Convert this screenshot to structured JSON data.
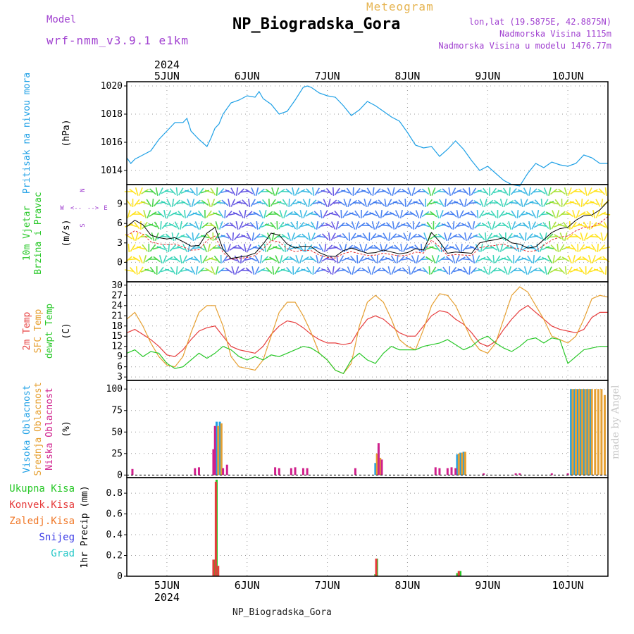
{
  "header": {
    "model_label": "Model",
    "model_name": "wrf-nmm_v3.9.1 e1km",
    "product": "Meteogram",
    "station": "NP_Biogradska_Gora",
    "coords": "lon,lat (19.5875E, 42.8875N)",
    "elevation": "Nadmorska Visina 1115m",
    "model_elevation": "Nadmorska Visina u modelu 1476.77m",
    "footer": "NP_Biogradska_Gora",
    "watermark": "made by Angel"
  },
  "colors": {
    "pressure": "#1ea0e6",
    "wind_black": "#000000",
    "wind_red": "#e63232",
    "t2m": "#e63c3c",
    "sfc": "#e6a032",
    "dew": "#28c828",
    "cloud_high": "#1ea0e6",
    "cloud_mid": "#e6a032",
    "cloud_low": "#d0208c",
    "precip_total": "#28c828",
    "precip_conv": "#e63c3c",
    "precip_frz": "#f07828",
    "precip_snow": "#3c3ce6",
    "precip_grad": "#28c8c8",
    "purple_text": "#a040d0",
    "orange_text": "#e6b450"
  },
  "chart_data": {
    "type": "meteogram",
    "date_axis": {
      "top_labels": [
        "5JUN",
        "6JUN",
        "7JUN",
        "8JUN",
        "9JUN",
        "10JUN"
      ],
      "year": "2024"
    },
    "panels": [
      {
        "id": "pressure",
        "type": "line",
        "labels": [
          "Pritisak na nivou mora"
        ],
        "unit": "(hPa)",
        "ylim": [
          1013,
          1020.3
        ],
        "yticks": [
          1014,
          1016,
          1018,
          1020
        ],
        "series": [
          {
            "x_days": [
              4.5,
              4.55,
              4.6,
              4.7,
              4.8,
              4.9,
              5.0,
              5.1,
              5.2,
              5.25,
              5.3,
              5.4,
              5.5,
              5.55,
              5.6,
              5.65,
              5.7,
              5.8,
              5.9,
              6.0,
              6.1,
              6.15,
              6.2,
              6.3,
              6.4,
              6.5,
              6.6,
              6.7,
              6.75,
              6.8,
              6.9,
              7.0,
              7.1,
              7.2,
              7.3,
              7.4,
              7.5,
              7.6,
              7.7,
              7.8,
              7.9,
              8.0,
              8.1,
              8.2,
              8.3,
              8.4,
              8.5,
              8.6,
              8.7,
              8.8,
              8.9,
              9.0,
              9.1,
              9.2,
              9.3,
              9.4,
              9.5,
              9.6,
              9.7,
              9.8,
              9.9,
              10.0,
              10.1,
              10.2,
              10.3,
              10.4,
              10.5
            ],
            "values": [
              1014.9,
              1014.5,
              1014.8,
              1015.1,
              1015.4,
              1016.2,
              1016.8,
              1017.4,
              1017.4,
              1017.7,
              1016.8,
              1016.2,
              1015.7,
              1016.3,
              1017,
              1017.3,
              1018,
              1018.8,
              1019,
              1019.3,
              1019.2,
              1019.6,
              1019.1,
              1018.7,
              1018.0,
              1018.2,
              1019.0,
              1019.9,
              1020,
              1019.9,
              1019.5,
              1019.3,
              1019.2,
              1018.6,
              1017.9,
              1018.3,
              1018.9,
              1018.6,
              1018.2,
              1017.8,
              1017.5,
              1016.7,
              1015.8,
              1015.6,
              1015.7,
              1015.0,
              1015.5,
              1016.1,
              1015.5,
              1014.7,
              1014.0,
              1014.3,
              1013.8,
              1013.3,
              1013.0,
              1012.9,
              1013.8,
              1014.5,
              1014.2,
              1014.6,
              1014.4,
              1014.3,
              1014.5,
              1015.1,
              1014.9,
              1014.5,
              1014.5
            ]
          }
        ]
      },
      {
        "id": "wind",
        "type": "line",
        "labels": [
          "10m Vjetar",
          "Brzina i Pravac"
        ],
        "unit": "(m/s)",
        "compass_letters": [
          "N",
          "E",
          "W",
          "S"
        ],
        "compass_arrows": [
          "<--",
          "-->"
        ],
        "ylim": [
          -3,
          12
        ],
        "yticks": [
          0,
          3,
          6,
          9
        ],
        "series": [
          {
            "name": "speed",
            "x_days": [
              4.5,
              4.6,
              4.7,
              4.8,
              4.9,
              5.0,
              5.1,
              5.2,
              5.3,
              5.4,
              5.5,
              5.6,
              5.7,
              5.8,
              5.9,
              6.0,
              6.1,
              6.2,
              6.3,
              6.4,
              6.5,
              6.6,
              6.7,
              6.8,
              6.9,
              7.0,
              7.1,
              7.2,
              7.3,
              7.4,
              7.5,
              7.6,
              7.7,
              7.8,
              7.9,
              8.0,
              8.1,
              8.2,
              8.3,
              8.4,
              8.5,
              8.6,
              8.7,
              8.8,
              8.9,
              9.0,
              9.1,
              9.2,
              9.3,
              9.4,
              9.5,
              9.6,
              9.7,
              9.8,
              9.9,
              10.0,
              10.1,
              10.2,
              10.3,
              10.4,
              10.5
            ],
            "values": [
              5.5,
              6.5,
              5.8,
              4.2,
              3.8,
              3.6,
              3.8,
              3.2,
              2.5,
              2.6,
              4.5,
              5.4,
              2.0,
              0.6,
              0.8,
              1.0,
              1.4,
              2.8,
              4.5,
              4.2,
              2.8,
              2.2,
              2.5,
              2.4,
              1.5,
              1.0,
              0.9,
              1.8,
              2.2,
              1.8,
              1.4,
              1.5,
              1.9,
              1.6,
              1.3,
              1.5,
              2.1,
              1.9,
              4.6,
              3.2,
              1.4,
              1.6,
              1.5,
              1.4,
              3.0,
              3.3,
              3.5,
              3.8,
              3.0,
              2.8,
              2.2,
              2.4,
              3.5,
              4.6,
              5.2,
              5.4,
              6.5,
              7.2,
              7.3,
              8.1,
              9.4
            ]
          }
        ]
      },
      {
        "id": "temperature",
        "type": "line",
        "labels": [
          "2m Temp",
          "SFC Temp",
          "dewpt Temp"
        ],
        "unit": "(C)",
        "ylim": [
          2,
          31
        ],
        "yticks": [
          3,
          6,
          9,
          12,
          15,
          18,
          21,
          24,
          27,
          30
        ],
        "series": [
          {
            "name": "2m Temp",
            "x_days": [
              4.5,
              4.6,
              4.7,
              4.8,
              4.9,
              5.0,
              5.1,
              5.2,
              5.3,
              5.4,
              5.5,
              5.6,
              5.7,
              5.8,
              5.9,
              6.0,
              6.1,
              6.2,
              6.3,
              6.4,
              6.5,
              6.6,
              6.7,
              6.8,
              6.9,
              7.0,
              7.1,
              7.2,
              7.3,
              7.4,
              7.5,
              7.6,
              7.7,
              7.8,
              7.9,
              8.0,
              8.1,
              8.2,
              8.3,
              8.4,
              8.5,
              8.6,
              8.7,
              8.8,
              8.9,
              9.0,
              9.1,
              9.2,
              9.3,
              9.4,
              9.5,
              9.6,
              9.7,
              9.8,
              9.9,
              10.0,
              10.1,
              10.2,
              10.3,
              10.4,
              10.5
            ],
            "values": [
              16,
              17,
              15.5,
              14,
              12,
              9.5,
              9,
              11,
              14,
              16.5,
              17.5,
              18,
              15,
              12,
              11,
              10.5,
              10,
              12,
              15.5,
              18,
              19.5,
              19,
              17.5,
              15.5,
              14,
              13,
              13,
              12.5,
              13,
              17,
              20,
              21,
              20,
              18,
              16,
              15,
              15,
              18,
              21,
              22.5,
              22,
              20,
              18.5,
              16,
              13,
              12,
              13.5,
              17,
              20,
              22.5,
              24,
              22,
              20,
              18,
              17,
              16.5,
              16,
              17,
              20.5,
              22,
              22
            ]
          },
          {
            "name": "SFC Temp",
            "x_days": [
              4.5,
              4.6,
              4.7,
              4.8,
              4.9,
              5.0,
              5.1,
              5.2,
              5.3,
              5.4,
              5.5,
              5.6,
              5.7,
              5.8,
              5.9,
              6.0,
              6.1,
              6.2,
              6.3,
              6.4,
              6.5,
              6.6,
              6.7,
              6.8,
              6.9,
              7.0,
              7.1,
              7.2,
              7.3,
              7.4,
              7.5,
              7.6,
              7.7,
              7.8,
              7.9,
              8.0,
              8.1,
              8.2,
              8.3,
              8.4,
              8.5,
              8.6,
              8.7,
              8.8,
              8.9,
              9.0,
              9.1,
              9.2,
              9.3,
              9.4,
              9.5,
              9.6,
              9.7,
              9.8,
              9.9,
              10.0,
              10.1,
              10.2,
              10.3,
              10.4,
              10.5
            ],
            "values": [
              20,
              22,
              18,
              13,
              9,
              6.5,
              6,
              9,
              16,
              22,
              24,
              24,
              18,
              9,
              6,
              5.5,
              5,
              8,
              15,
              22,
              25,
              25,
              21,
              16,
              10,
              8,
              5,
              4,
              7,
              18,
              25,
              27,
              25,
              20,
              14,
              12,
              11,
              17,
              24,
              27.5,
              27,
              24,
              19,
              14,
              11,
              10,
              13,
              20,
              27,
              29.5,
              28,
              24,
              20,
              15,
              14,
              13,
              15,
              20,
              26,
              27,
              26.5
            ]
          },
          {
            "name": "dewpt Temp",
            "x_days": [
              4.5,
              4.6,
              4.7,
              4.8,
              4.9,
              5.0,
              5.1,
              5.2,
              5.3,
              5.4,
              5.5,
              5.6,
              5.7,
              5.8,
              5.9,
              6.0,
              6.1,
              6.2,
              6.3,
              6.4,
              6.5,
              6.6,
              6.7,
              6.8,
              6.9,
              7.0,
              7.1,
              7.2,
              7.3,
              7.4,
              7.5,
              7.6,
              7.7,
              7.8,
              7.9,
              8.0,
              8.1,
              8.2,
              8.3,
              8.4,
              8.5,
              8.6,
              8.7,
              8.8,
              8.9,
              9.0,
              9.1,
              9.2,
              9.3,
              9.4,
              9.5,
              9.6,
              9.7,
              9.8,
              9.9,
              10.0,
              10.1,
              10.2,
              10.3,
              10.4,
              10.5
            ],
            "values": [
              10,
              11,
              9,
              10.5,
              10,
              7,
              5.5,
              6,
              8,
              10,
              8.5,
              10,
              12,
              11,
              9,
              8,
              9,
              8,
              9.5,
              9,
              10,
              11,
              12,
              11.5,
              10,
              8,
              5,
              4,
              8,
              10,
              8,
              7,
              10,
              12,
              11,
              11,
              11,
              12,
              12.5,
              13,
              14,
              12.5,
              11,
              12,
              14,
              15,
              13,
              11.5,
              10.5,
              12,
              14,
              14.5,
              13,
              14.5,
              14,
              7,
              9,
              11,
              11.5,
              12,
              12
            ]
          }
        ]
      },
      {
        "id": "clouds",
        "type": "bar",
        "labels": [
          "Visoka Oblacnost",
          "Srednja Oblacnost",
          "Niska Oblacnost"
        ],
        "unit": "(%)",
        "ylim": [
          -3,
          110
        ],
        "yticks": [
          0,
          25,
          50,
          75,
          100
        ],
        "series": [
          {
            "name": "Visoka Oblacnost",
            "x_days": [
              5.62,
              5.66,
              7.6,
              7.64,
              8.62,
              8.66,
              8.7,
              10.04,
              10.08,
              10.12,
              10.16,
              10.2,
              10.24,
              10.28
            ],
            "values": [
              62,
              62,
              14,
              33,
              24,
              26,
              27,
              100,
              100,
              100,
              100,
              100,
              100,
              100
            ]
          },
          {
            "name": "Srednja Oblacnost",
            "x_days": [
              5.64,
              5.68,
              7.62,
              7.66,
              8.64,
              8.68,
              8.72,
              10.06,
              10.1,
              10.14,
              10.18,
              10.22,
              10.26,
              10.3,
              10.34,
              10.38,
              10.42,
              10.46
            ],
            "values": [
              57,
              60,
              25,
              20,
              25,
              26,
              27,
              100,
              100,
              100,
              100,
              100,
              100,
              100,
              100,
              100,
              100,
              93
            ]
          },
          {
            "name": "Niska Oblacnost",
            "x_days": [
              4.57,
              5.35,
              5.4,
              5.58,
              5.6,
              5.7,
              5.75,
              6.35,
              6.4,
              6.55,
              6.6,
              6.7,
              6.75,
              7.35,
              7.64,
              7.68,
              8.35,
              8.4,
              8.5,
              8.55,
              8.6,
              8.95,
              9.35,
              9.4,
              9.8,
              10.0
            ],
            "values": [
              7,
              8,
              9,
              30,
              57,
              8,
              12,
              9,
              8,
              8,
              9,
              8,
              8,
              8,
              37,
              18,
              9,
              8,
              8,
              9,
              8,
              2,
              2,
              2,
              2,
              2
            ]
          }
        ]
      },
      {
        "id": "precip",
        "type": "bar",
        "labels": [
          "Ukupna Kisa",
          "Konvek.Kisa",
          "Zaledj.Kisa",
          "Snijeg",
          "Grad"
        ],
        "axis_label": "1hr Precip (mm)",
        "ylim": [
          0,
          0.95
        ],
        "yticks": [
          0,
          0.2,
          0.4,
          0.6,
          0.8
        ],
        "ytick_labels": [
          "0",
          "0.2",
          "0.4",
          "0.6",
          "0.8"
        ],
        "series": [
          {
            "name": "Ukupna Kisa",
            "x_days": [
              5.6,
              5.62,
              7.6,
              7.62,
              8.62,
              8.66
            ],
            "values": [
              0.16,
              0.93,
              0.02,
              0.17,
              0.03,
              0.05
            ]
          },
          {
            "name": "Konvek.Kisa",
            "x_days": [
              5.58,
              5.61,
              5.64,
              7.61,
              8.64
            ],
            "values": [
              0.16,
              0.91,
              0.1,
              0.17,
              0.05
            ]
          }
        ]
      }
    ],
    "x_axis_bottom_labels": [
      "5JUN",
      "6JUN",
      "7JUN",
      "8JUN",
      "9JUN",
      "10JUN"
    ],
    "x_axis_bottom_year": "2024",
    "xlim_days": [
      4.5,
      10.5
    ]
  }
}
